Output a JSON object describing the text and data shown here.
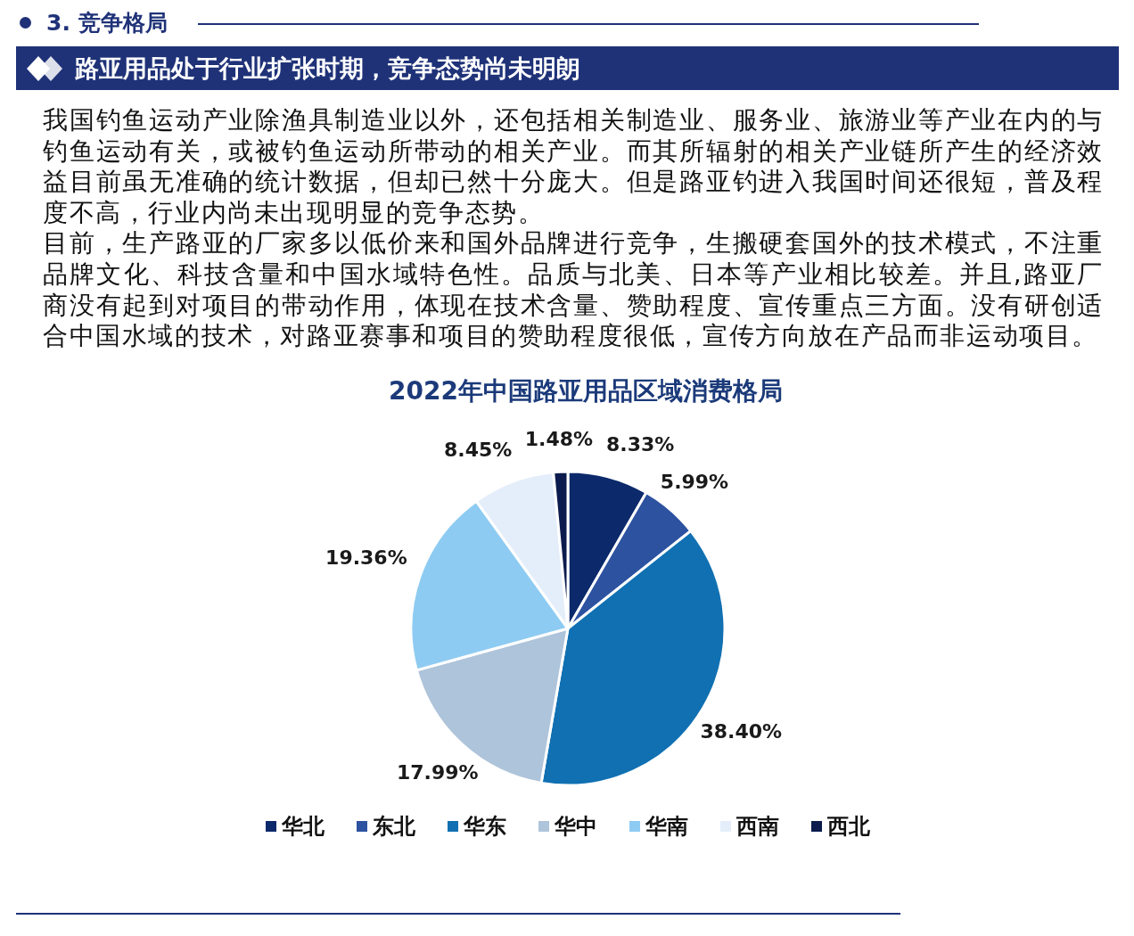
{
  "chart_data": {
    "type": "pie",
    "title": "2022年中国路亚用品区域消费格局",
    "annotations": [
      "3. 竞争格局",
      "路亚用品处于行业扩张时期，竞争态势尚未明朗",
      "我国钓鱼运动产业除渔具制造业以外，还包括相关制造业、服务业、旅游业等产业在内的与钓鱼运动有关，或被钓鱼运动所带动的相关产业。而其所辐射的相关产业链所产生的经济效益目前虽无准确的统计数据，但却已然十分庞大。但是路亚钓进入我国时间还很短，普及程度不高，行业内尚未出现明显的竞争态势。",
      "目前，生产路亚的厂家多以低价来和国外品牌进行竞争，生搬硬套国外的技术模式，不注重品牌文化、科技含量和中国水域特色性。品质与北美、日本等产业相比较差。并且,路亚厂商没有起到对项目的带动作用，体现在技术含量、赞助程度、宣传重点三方面。没有研创适合中国水域的技术，对路亚赛事和项目的赞助程度很低，宣传方向放在产品而非运动项目。"
    ],
    "categories": [
      "华北",
      "东北",
      "华东",
      "华中",
      "华南",
      "西南",
      "西北"
    ],
    "values": [
      8.33,
      5.99,
      38.4,
      17.99,
      19.36,
      8.45,
      1.48
    ],
    "colors": [
      "#0c2a6b",
      "#2d52a0",
      "#1070b2",
      "#aec4da",
      "#8ecbf2",
      "#e4eefa",
      "#0b1b4d"
    ],
    "value_labels": [
      "8.33%",
      "5.99%",
      "38.40%",
      "17.99%",
      "19.36%",
      "8.45%",
      "1.48%"
    ],
    "legend": "bottom"
  }
}
